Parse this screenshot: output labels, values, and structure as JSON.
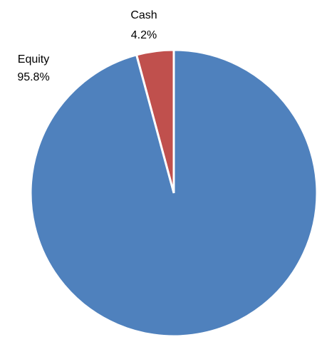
{
  "chart_data": {
    "type": "pie",
    "slices": [
      {
        "name": "Cash",
        "value": 4.2,
        "label": "4.2%",
        "color": "#c0504d"
      },
      {
        "name": "Equity",
        "value": 95.8,
        "label": "95.8%",
        "color": "#4f81bd"
      }
    ],
    "start": "12 o'clock",
    "direction": "counter-clockwise",
    "legend": "none"
  }
}
